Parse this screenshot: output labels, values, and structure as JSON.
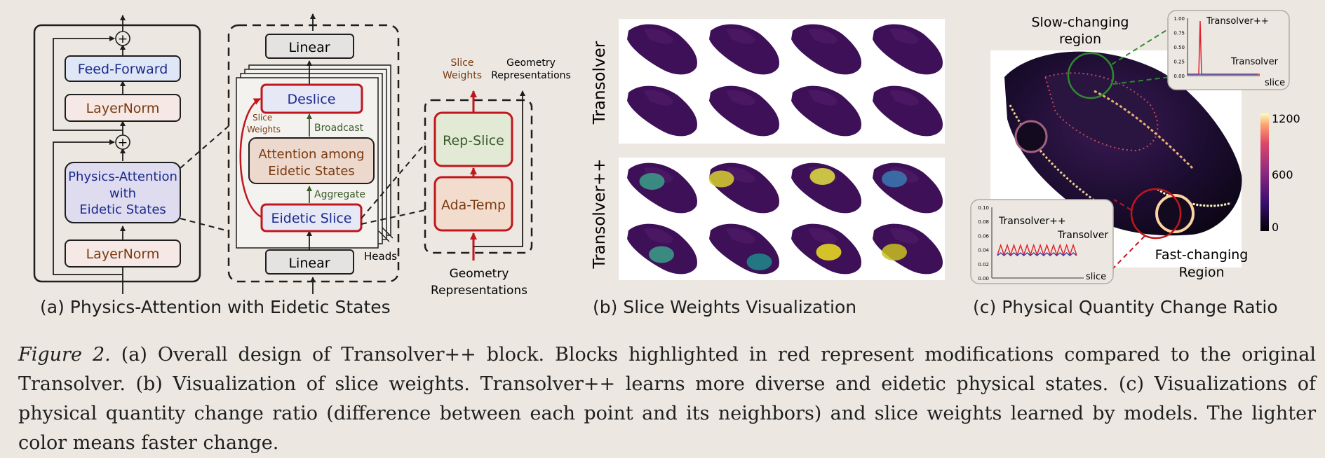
{
  "panel_a": {
    "caption": "(a) Physics-Attention with Eidetic States",
    "feed_forward": "Feed-Forward",
    "layernorm_top": "LayerNorm",
    "physics_attention": [
      "Physics-Attention",
      "with",
      "Eidetic States"
    ],
    "layernorm_bottom": "LayerNorm",
    "plus_symbol": "+",
    "linear_top": "Linear",
    "deslice": "Deslice",
    "attention": [
      "Attention among",
      "Eidetic States"
    ],
    "eidetic_slice": "Eidetic Slice",
    "linear_bottom": "Linear",
    "broadcast": "Broadcast",
    "aggregate": "Aggregate",
    "slice_weights_side": [
      "Slice",
      "Weights"
    ],
    "heads": "Heads",
    "rep_slice": "Rep-Slice",
    "ada_temp": "Ada-Temp",
    "slice_weights_out": [
      "Slice",
      "Weights"
    ],
    "geometry_out": [
      "Geometry",
      "Representations"
    ],
    "geometry_in": [
      "Geometry",
      "Representations"
    ]
  },
  "panel_b": {
    "caption": "(b) Slice Weights Visualization",
    "row_labels": [
      "Transolver",
      "Transolver++"
    ]
  },
  "panel_c": {
    "caption": "(c) Physical Quantity Change Ratio",
    "slow_label": [
      "Slow-changing",
      "region"
    ],
    "fast_label": [
      "Fast-changing",
      "Region"
    ],
    "colorbar_ticks": [
      "1200",
      "600",
      "0"
    ],
    "top_plot": {
      "yticks": [
        "1.00",
        "0.75",
        "0.50",
        "0.25",
        "0.00"
      ],
      "xlabel": "slice",
      "series": [
        "Transolver++",
        "Transolver"
      ]
    },
    "bottom_plot": {
      "yticks": [
        "0.10",
        "0.08",
        "0.06",
        "0.04",
        "0.02",
        "0.00"
      ],
      "xlabel": "slice",
      "series": [
        "Transolver++",
        "Transolver"
      ]
    }
  },
  "colors": {
    "red": "#c0161c",
    "blue_text": "#1a2a8c",
    "green_text": "#3a5a2a",
    "brown_text": "#7a3a10",
    "deslice_fill": "#e6e8f6",
    "attention_fill": "#ecd8cc",
    "rep_fill": "#e2ead6",
    "ada_fill": "#f2dccd",
    "ff_fill": "#dfe6f5",
    "ln_fill": "#f6e8e4",
    "pa_fill": "#e0dcf0"
  },
  "figure_caption": {
    "label": "Figure 2.",
    "text": " (a) Overall design of Transolver++ block. Blocks highlighted in red represent modifications compared to the original Transolver. (b) Visualization of slice weights. Transolver++ learns more diverse and eidetic physical states. (c) Visualizations of physical quantity change ratio (difference between each point and its neighbors) and slice weights learned by models. The lighter color means faster change."
  }
}
